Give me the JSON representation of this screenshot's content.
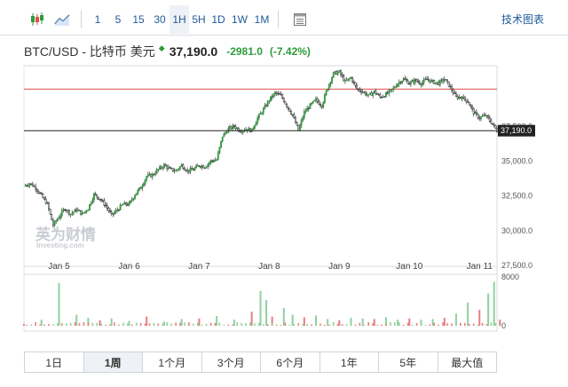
{
  "toolbar": {
    "intervals": [
      "1",
      "5",
      "15",
      "30",
      "1H",
      "5H",
      "1D",
      "1W",
      "1M"
    ],
    "active_interval": "1H",
    "technical_chart_label": "技术图表",
    "icons": [
      "candlestick-icon",
      "line-chart-icon",
      "table-icon"
    ]
  },
  "header": {
    "pair": "BTC/USD - 比特币 美元",
    "last": "37,190.0",
    "change": "-2981.0",
    "change_pct": "(-7.42%)",
    "arrow_color": "#2e9b3c",
    "change_color": "#2e9b3c"
  },
  "price_axis": {
    "ticks": [
      "37,500.0",
      "35,000.0",
      "32,500.0",
      "30,000.0",
      "27,500.0"
    ],
    "current_price_label": "37,190.0",
    "resistance_level": 40180
  },
  "volume_axis": {
    "ticks": [
      "8000",
      "0"
    ]
  },
  "x_axis": {
    "labels": [
      "Jan 5",
      "Jan 6",
      "Jan 7",
      "Jan 8",
      "Jan 9",
      "Jan 10",
      "Jan 11"
    ]
  },
  "watermark": {
    "line1": "英为财情",
    "line2": "Investing.com"
  },
  "range_buttons": {
    "items": [
      "1日",
      "1周",
      "1个月",
      "3个月",
      "6个月",
      "1年",
      "5年",
      "最大值"
    ],
    "active": "1周"
  },
  "colors": {
    "up": "#2e9b3c",
    "down": "#e14c4c",
    "volume_up": "#8fd19e",
    "volume_down": "#e57f7f",
    "link": "#1d5a9a"
  },
  "chart_data": {
    "type": "candlestick",
    "x_unit": "hourly",
    "ylim": [
      27500,
      41800
    ],
    "price_trace": [
      [
        0,
        33200
      ],
      [
        4,
        33400
      ],
      [
        8,
        33100
      ],
      [
        12,
        32500
      ],
      [
        16,
        31900
      ],
      [
        20,
        30400
      ],
      [
        24,
        31000
      ],
      [
        28,
        31600
      ],
      [
        32,
        31200
      ],
      [
        36,
        31500
      ],
      [
        40,
        31200
      ],
      [
        44,
        31600
      ],
      [
        48,
        32600
      ],
      [
        52,
        32300
      ],
      [
        56,
        31800
      ],
      [
        60,
        31100
      ],
      [
        64,
        31500
      ],
      [
        68,
        31900
      ],
      [
        72,
        31900
      ],
      [
        76,
        32600
      ],
      [
        80,
        33100
      ],
      [
        84,
        33900
      ],
      [
        88,
        34000
      ],
      [
        92,
        34400
      ],
      [
        96,
        34700
      ],
      [
        100,
        34400
      ],
      [
        104,
        34300
      ],
      [
        108,
        34700
      ],
      [
        112,
        34300
      ],
      [
        116,
        34400
      ],
      [
        120,
        34700
      ],
      [
        124,
        34600
      ],
      [
        128,
        35000
      ],
      [
        132,
        35100
      ],
      [
        136,
        36800
      ],
      [
        140,
        37300
      ],
      [
        144,
        37500
      ],
      [
        148,
        37200
      ],
      [
        152,
        37300
      ],
      [
        156,
        37200
      ],
      [
        160,
        38100
      ],
      [
        164,
        38700
      ],
      [
        168,
        39400
      ],
      [
        172,
        39900
      ],
      [
        176,
        39700
      ],
      [
        180,
        39000
      ],
      [
        184,
        38300
      ],
      [
        188,
        37200
      ],
      [
        192,
        38500
      ],
      [
        196,
        39000
      ],
      [
        200,
        39400
      ],
      [
        204,
        39000
      ],
      [
        208,
        40300
      ],
      [
        212,
        41300
      ],
      [
        216,
        41400
      ],
      [
        220,
        40700
      ],
      [
        224,
        41000
      ],
      [
        228,
        40200
      ],
      [
        232,
        40000
      ],
      [
        236,
        39700
      ],
      [
        240,
        40000
      ],
      [
        244,
        39600
      ],
      [
        248,
        39800
      ],
      [
        252,
        40100
      ],
      [
        256,
        40600
      ],
      [
        260,
        40900
      ],
      [
        264,
        40600
      ],
      [
        268,
        40800
      ],
      [
        272,
        40600
      ],
      [
        276,
        40900
      ],
      [
        280,
        40700
      ],
      [
        284,
        40600
      ],
      [
        288,
        40900
      ],
      [
        292,
        40300
      ],
      [
        296,
        39600
      ],
      [
        300,
        39600
      ],
      [
        304,
        39300
      ],
      [
        308,
        38500
      ],
      [
        312,
        38100
      ],
      [
        316,
        38300
      ],
      [
        320,
        37800
      ],
      [
        324,
        37190
      ]
    ],
    "volume": [
      [
        0,
        300
      ],
      [
        12,
        1000
      ],
      [
        24,
        7000
      ],
      [
        26,
        400
      ],
      [
        36,
        1800
      ],
      [
        44,
        1300
      ],
      [
        52,
        900
      ],
      [
        60,
        1200
      ],
      [
        72,
        800
      ],
      [
        84,
        1500
      ],
      [
        96,
        700
      ],
      [
        108,
        1100
      ],
      [
        120,
        1200
      ],
      [
        132,
        1600
      ],
      [
        144,
        1000
      ],
      [
        156,
        2300
      ],
      [
        162,
        5700
      ],
      [
        166,
        4200
      ],
      [
        170,
        1500
      ],
      [
        178,
        2900
      ],
      [
        184,
        1800
      ],
      [
        192,
        1400
      ],
      [
        200,
        1700
      ],
      [
        208,
        1100
      ],
      [
        216,
        900
      ],
      [
        224,
        1300
      ],
      [
        232,
        1200
      ],
      [
        240,
        1100
      ],
      [
        248,
        1400
      ],
      [
        256,
        1000
      ],
      [
        264,
        1200
      ],
      [
        272,
        1000
      ],
      [
        280,
        1100
      ],
      [
        288,
        1300
      ],
      [
        296,
        2000
      ],
      [
        304,
        3800
      ],
      [
        312,
        2600
      ],
      [
        318,
        5300
      ],
      [
        322,
        7200
      ],
      [
        326,
        1000
      ]
    ],
    "ylabel": "",
    "xlabel": "",
    "grid": false
  }
}
